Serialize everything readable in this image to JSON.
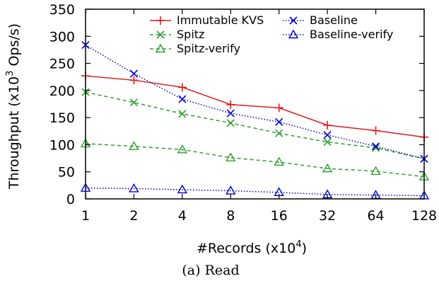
{
  "chart_data": {
    "type": "line",
    "xlabel": "#Records (x10",
    "xlabel_sup": "4",
    "xlabel_end": ")",
    "ylabel": "Throughput (x10",
    "ylabel_sup": "3",
    "ylabel_end": " Ops/s)",
    "caption": "(a) Read",
    "categories": [
      "1",
      "2",
      "4",
      "8",
      "16",
      "32",
      "64",
      "128"
    ],
    "yticks": [
      0,
      50,
      100,
      150,
      200,
      250,
      300,
      350
    ],
    "ylim": [
      0,
      350
    ],
    "grid": false,
    "legend_position": "top-right",
    "series": [
      {
        "name": "Immutable KVS",
        "color": "#e41a1c",
        "marker": "plus",
        "dash": "solid",
        "values": [
          227,
          219,
          206,
          174,
          168,
          136,
          126,
          114
        ]
      },
      {
        "name": "Spitz",
        "color": "#2ca02c",
        "marker": "x",
        "dash": "dashed",
        "values": [
          197,
          178,
          157,
          140,
          121,
          105,
          94,
          74
        ]
      },
      {
        "name": "Spitz-verify",
        "color": "#2ca02c",
        "marker": "triangle",
        "dash": "dashed",
        "values": [
          102,
          97,
          91,
          76,
          68,
          56,
          51,
          41
        ]
      },
      {
        "name": "Baseline",
        "color": "#0000cc",
        "marker": "x",
        "dash": "dotted",
        "values": [
          284,
          231,
          184,
          158,
          142,
          118,
          97,
          74
        ]
      },
      {
        "name": "Baseline-verify",
        "color": "#0000cc",
        "marker": "triangle",
        "dash": "dotted",
        "values": [
          20,
          19,
          17,
          15,
          12,
          8,
          7,
          6
        ]
      }
    ]
  }
}
